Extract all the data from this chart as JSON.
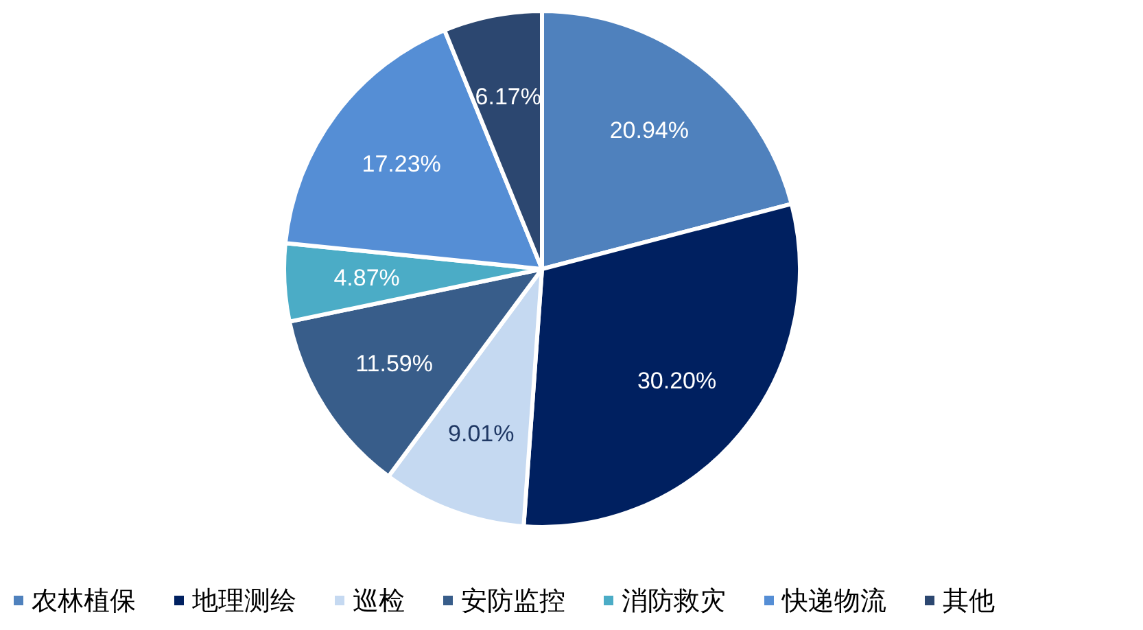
{
  "chart_data": {
    "type": "pie",
    "categories": [
      "农林植保",
      "地理测绘",
      "巡检",
      "安防监控",
      "消防救灾",
      "快递物流",
      "其他"
    ],
    "values": [
      20.94,
      30.2,
      9.01,
      11.59,
      4.87,
      17.23,
      6.17
    ],
    "colors": [
      "#4f81bd",
      "#002060",
      "#c5d9f1",
      "#385d8a",
      "#4bacc6",
      "#558ed5",
      "#2c4770"
    ],
    "value_labels": [
      "20.94%",
      "30.20%",
      "9.01%",
      "11.59%",
      "4.87%",
      "17.23%",
      "6.17%"
    ],
    "legend": "bottom"
  }
}
